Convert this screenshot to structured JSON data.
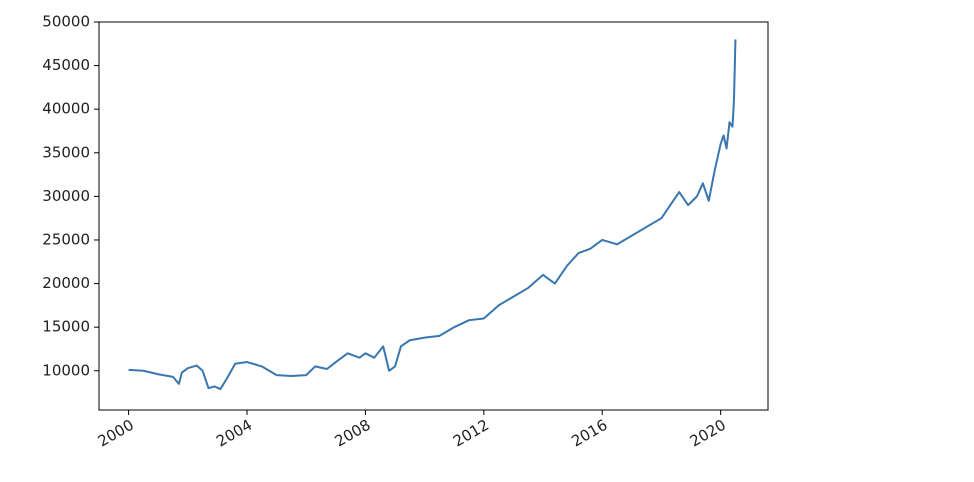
{
  "chart_data": {
    "type": "line",
    "x": [
      2000.0,
      2000.5,
      2001.0,
      2001.5,
      2001.7,
      2001.8,
      2002.0,
      2002.3,
      2002.5,
      2002.7,
      2002.9,
      2003.1,
      2003.3,
      2003.6,
      2004.0,
      2004.5,
      2005.0,
      2005.5,
      2006.0,
      2006.3,
      2006.7,
      2007.0,
      2007.4,
      2007.8,
      2008.0,
      2008.3,
      2008.6,
      2008.8,
      2009.0,
      2009.2,
      2009.5,
      2010.0,
      2010.5,
      2011.0,
      2011.5,
      2012.0,
      2012.5,
      2013.0,
      2013.5,
      2014.0,
      2014.4,
      2014.8,
      2015.2,
      2015.6,
      2016.0,
      2016.5,
      2017.0,
      2017.5,
      2018.0,
      2018.3,
      2018.6,
      2018.9,
      2019.2,
      2019.4,
      2019.6,
      2019.8,
      2020.0,
      2020.1,
      2020.2,
      2020.3,
      2020.4,
      2020.45,
      2020.5
    ],
    "series": [
      {
        "color": "#3a76af",
        "values": [
          10100,
          10000,
          9600,
          9300,
          8500,
          9800,
          10300,
          10600,
          10000,
          8000,
          8200,
          7900,
          9000,
          10800,
          11000,
          10500,
          9500,
          9400,
          9500,
          10500,
          10200,
          11000,
          12000,
          11500,
          12000,
          11500,
          12800,
          10000,
          10500,
          12800,
          13500,
          13800,
          14000,
          15000,
          15800,
          16000,
          17500,
          18500,
          19500,
          21000,
          20000,
          22000,
          23500,
          24000,
          25000,
          24500,
          25500,
          26500,
          27500,
          29000,
          30500,
          29000,
          30000,
          31500,
          29500,
          33000,
          36000,
          37000,
          35500,
          38500,
          38000,
          41000,
          48000
        ]
      }
    ],
    "xlim": [
      1999,
      2021.6
    ],
    "ylim": [
      5500,
      50000
    ],
    "xticks": [
      2000,
      2004,
      2008,
      2012,
      2016,
      2020
    ],
    "yticks": [
      10000,
      15000,
      20000,
      25000,
      30000,
      35000,
      40000,
      45000,
      50000
    ]
  }
}
